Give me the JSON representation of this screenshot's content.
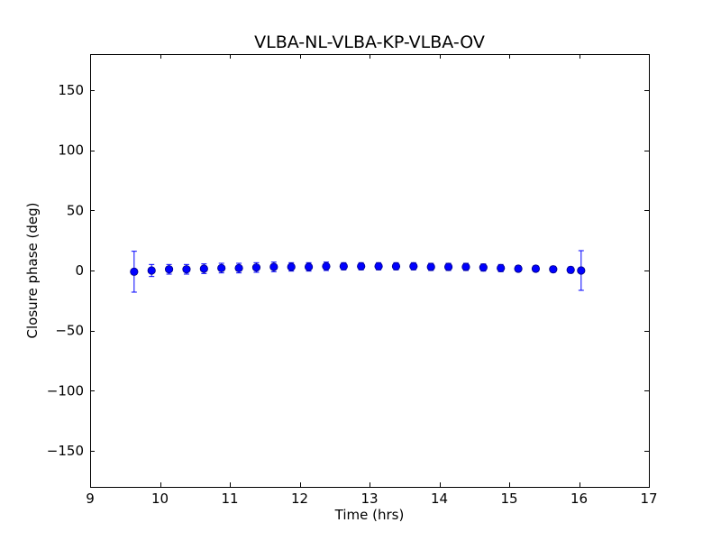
{
  "chart_data": {
    "type": "scatter",
    "title": "VLBA-NL-VLBA-KP-VLBA-OV",
    "xlabel": "Time (hrs)",
    "ylabel": "Closure phase (deg)",
    "xlim": [
      9,
      17
    ],
    "ylim": [
      -180,
      180
    ],
    "xticks": [
      "9",
      "10",
      "11",
      "12",
      "13",
      "14",
      "15",
      "16",
      "17"
    ],
    "xtick_values": [
      9,
      10,
      11,
      12,
      13,
      14,
      15,
      16,
      17
    ],
    "yticks": [
      "−150",
      "−100",
      "−50",
      "0",
      "50",
      "100",
      "150"
    ],
    "ytick_values": [
      -150,
      -100,
      -50,
      0,
      50,
      100,
      150
    ],
    "grid": false,
    "marker_color": "#0000ff",
    "series": [
      {
        "x": [
          9.63,
          9.88,
          10.13,
          10.38,
          10.63,
          10.88,
          11.13,
          11.38,
          11.63,
          11.88,
          12.13,
          12.38,
          12.63,
          12.88,
          13.13,
          13.38,
          13.63,
          13.88,
          14.13,
          14.38,
          14.63,
          14.88,
          15.13,
          15.38,
          15.63,
          15.88,
          16.03
        ],
        "y": [
          -1,
          0,
          1,
          1,
          1.5,
          2,
          2,
          2.5,
          3,
          3,
          3,
          3.5,
          3.5,
          3.5,
          3.5,
          3.5,
          3.5,
          3,
          3,
          3,
          2.5,
          2,
          1.5,
          1.5,
          1,
          0.5,
          0
        ],
        "err": [
          17,
          5,
          4,
          4,
          4,
          4,
          4,
          4,
          4,
          3.5,
          3.5,
          3.5,
          3,
          3,
          3,
          3,
          3,
          3,
          3,
          3,
          3,
          3,
          2.5,
          2.5,
          2.5,
          2.5,
          16.5
        ]
      }
    ]
  }
}
